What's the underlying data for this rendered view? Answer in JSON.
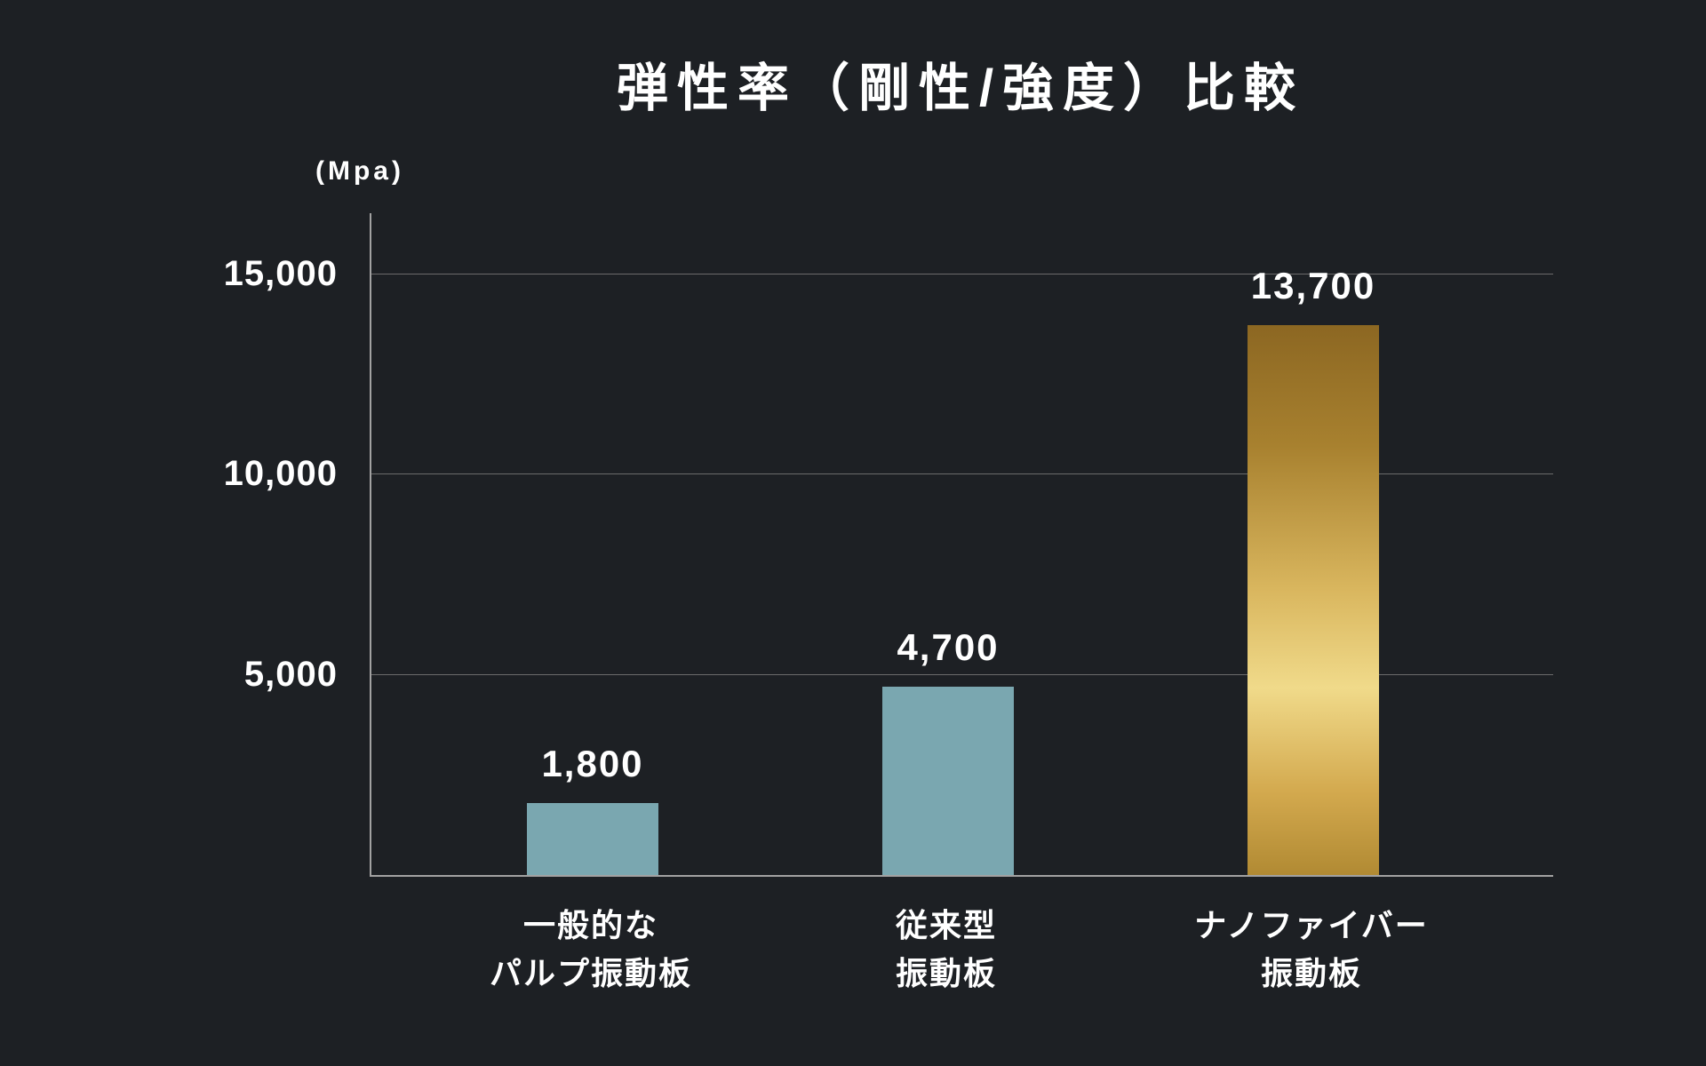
{
  "page": {
    "background_color": "#1d2024",
    "text_color": "#ffffff"
  },
  "chart_data": {
    "type": "bar",
    "title": "弾性率（剛性/強度）比較",
    "unit_label": "(Mpa)",
    "categories": [
      "一般的な\nパルプ振動板",
      "従来型\n振動板",
      "ナノファイバー\n振動板"
    ],
    "values": [
      1800,
      4700,
      13700
    ],
    "value_labels": [
      "1,800",
      "4,700",
      "13,700"
    ],
    "yticks": [
      5000,
      10000,
      15000
    ],
    "ytick_labels": [
      "5,000",
      "10,000",
      "15,000"
    ],
    "ylim": [
      0,
      16500
    ],
    "grid": true,
    "legend": false,
    "axis_color": "#a2a2a2",
    "grid_color": "#6b6b6b",
    "bar_fills": [
      {
        "type": "solid",
        "color": "#7aa7b0"
      },
      {
        "type": "solid",
        "color": "#7aa7b0"
      },
      {
        "type": "gradient",
        "direction": "180deg",
        "stops": [
          "#8c6722 0%",
          "#a8812f 22%",
          "#d9b65e 48%",
          "#f0da8a 66%",
          "#d3a94e 85%",
          "#b18a33 100%"
        ]
      }
    ]
  }
}
